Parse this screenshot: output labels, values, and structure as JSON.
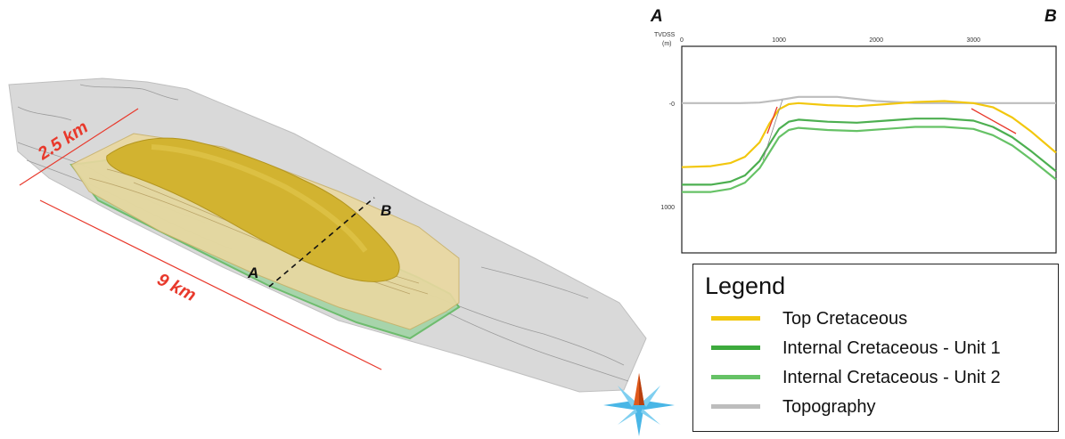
{
  "map": {
    "width_label": "2.5 km",
    "length_label": "9 km",
    "point_a": "A",
    "point_b": "B",
    "compass": "compass-rose-icon"
  },
  "section": {
    "label_a": "A",
    "label_b": "B",
    "ylabel_line1": "TVDSS",
    "ylabel_line2": "(m)"
  },
  "chart_data": {
    "type": "line",
    "xlabel": "",
    "ylabel": "TVDSS (m)",
    "x_ticks": [
      "0",
      "1000",
      "2000",
      "3000"
    ],
    "y_ticks": [
      "-0",
      "1000"
    ],
    "xlim": [
      0,
      3850
    ],
    "ylim": [
      1450,
      -550
    ],
    "grid": false,
    "series": [
      {
        "name": "Topography",
        "color": "#bdbdbd",
        "x": [
          0,
          400,
          600,
          800,
          1000,
          1200,
          1600,
          2000,
          2400,
          2800,
          3200,
          3600,
          3850
        ],
        "y": [
          0,
          0,
          0,
          -5,
          -30,
          -60,
          -60,
          -20,
          0,
          0,
          0,
          0,
          0
        ]
      },
      {
        "name": "Top Cretaceous",
        "color": "#f2c70e",
        "x": [
          0,
          300,
          500,
          650,
          800,
          900,
          1000,
          1100,
          1200,
          1500,
          1800,
          2100,
          2400,
          2700,
          3000,
          3200,
          3400,
          3600,
          3850
        ],
        "y": [
          620,
          610,
          580,
          520,
          380,
          200,
          60,
          10,
          0,
          20,
          30,
          10,
          -10,
          -20,
          0,
          40,
          140,
          280,
          480
        ]
      },
      {
        "name": "Internal Cretaceous - Unit 1",
        "color": "#4caf50",
        "x": [
          0,
          300,
          500,
          650,
          800,
          900,
          1000,
          1100,
          1200,
          1500,
          1800,
          2100,
          2400,
          2700,
          3000,
          3200,
          3400,
          3600,
          3850
        ],
        "y": [
          790,
          790,
          760,
          700,
          560,
          400,
          250,
          180,
          160,
          180,
          190,
          170,
          150,
          150,
          170,
          230,
          330,
          470,
          660
        ]
      },
      {
        "name": "Internal Cretaceous - Unit 2",
        "color": "#66c266",
        "x": [
          0,
          300,
          500,
          650,
          800,
          900,
          1000,
          1100,
          1200,
          1500,
          1800,
          2100,
          2400,
          2700,
          3000,
          3200,
          3400,
          3600,
          3850
        ],
        "y": [
          860,
          860,
          830,
          770,
          630,
          480,
          330,
          260,
          240,
          260,
          270,
          250,
          230,
          230,
          250,
          310,
          410,
          550,
          740
        ]
      }
    ]
  },
  "legend": {
    "title": "Legend",
    "items": [
      {
        "label": "Top Cretaceous",
        "color": "#f2c70e"
      },
      {
        "label": "Internal Cretaceous - Unit 1",
        "color": "#3daa3d"
      },
      {
        "label": "Internal Cretaceous - Unit 2",
        "color": "#66c266"
      },
      {
        "label": "Topography",
        "color": "#bdbdbd"
      }
    ]
  }
}
